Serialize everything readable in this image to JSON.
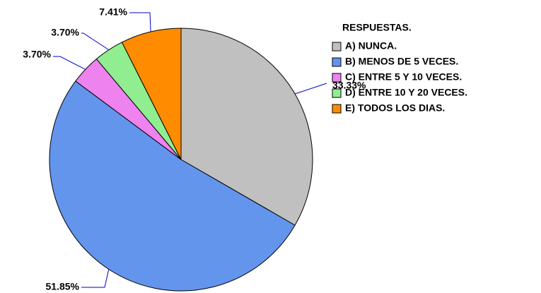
{
  "chart_data": {
    "type": "pie",
    "categories": [
      "A) NUNCA.",
      "B) MENOS DE 5 VECES.",
      "C) ENTRE 5 Y 10 VECES.",
      "D) ENTRE 10 Y 20 VECES.",
      "E) TODOS LOS DIAS."
    ],
    "values": [
      33.33,
      51.85,
      3.7,
      3.7,
      7.41
    ],
    "value_labels": [
      "33.33%",
      "51.85%",
      "3.70%",
      "3.70%",
      "7.41%"
    ],
    "colors": [
      "#c0c0c0",
      "#6495ed",
      "#ee82ee",
      "#90ee90",
      "#ff8c00"
    ],
    "legend": {
      "title": "RESPUESTAS.",
      "position": "upper right"
    }
  }
}
